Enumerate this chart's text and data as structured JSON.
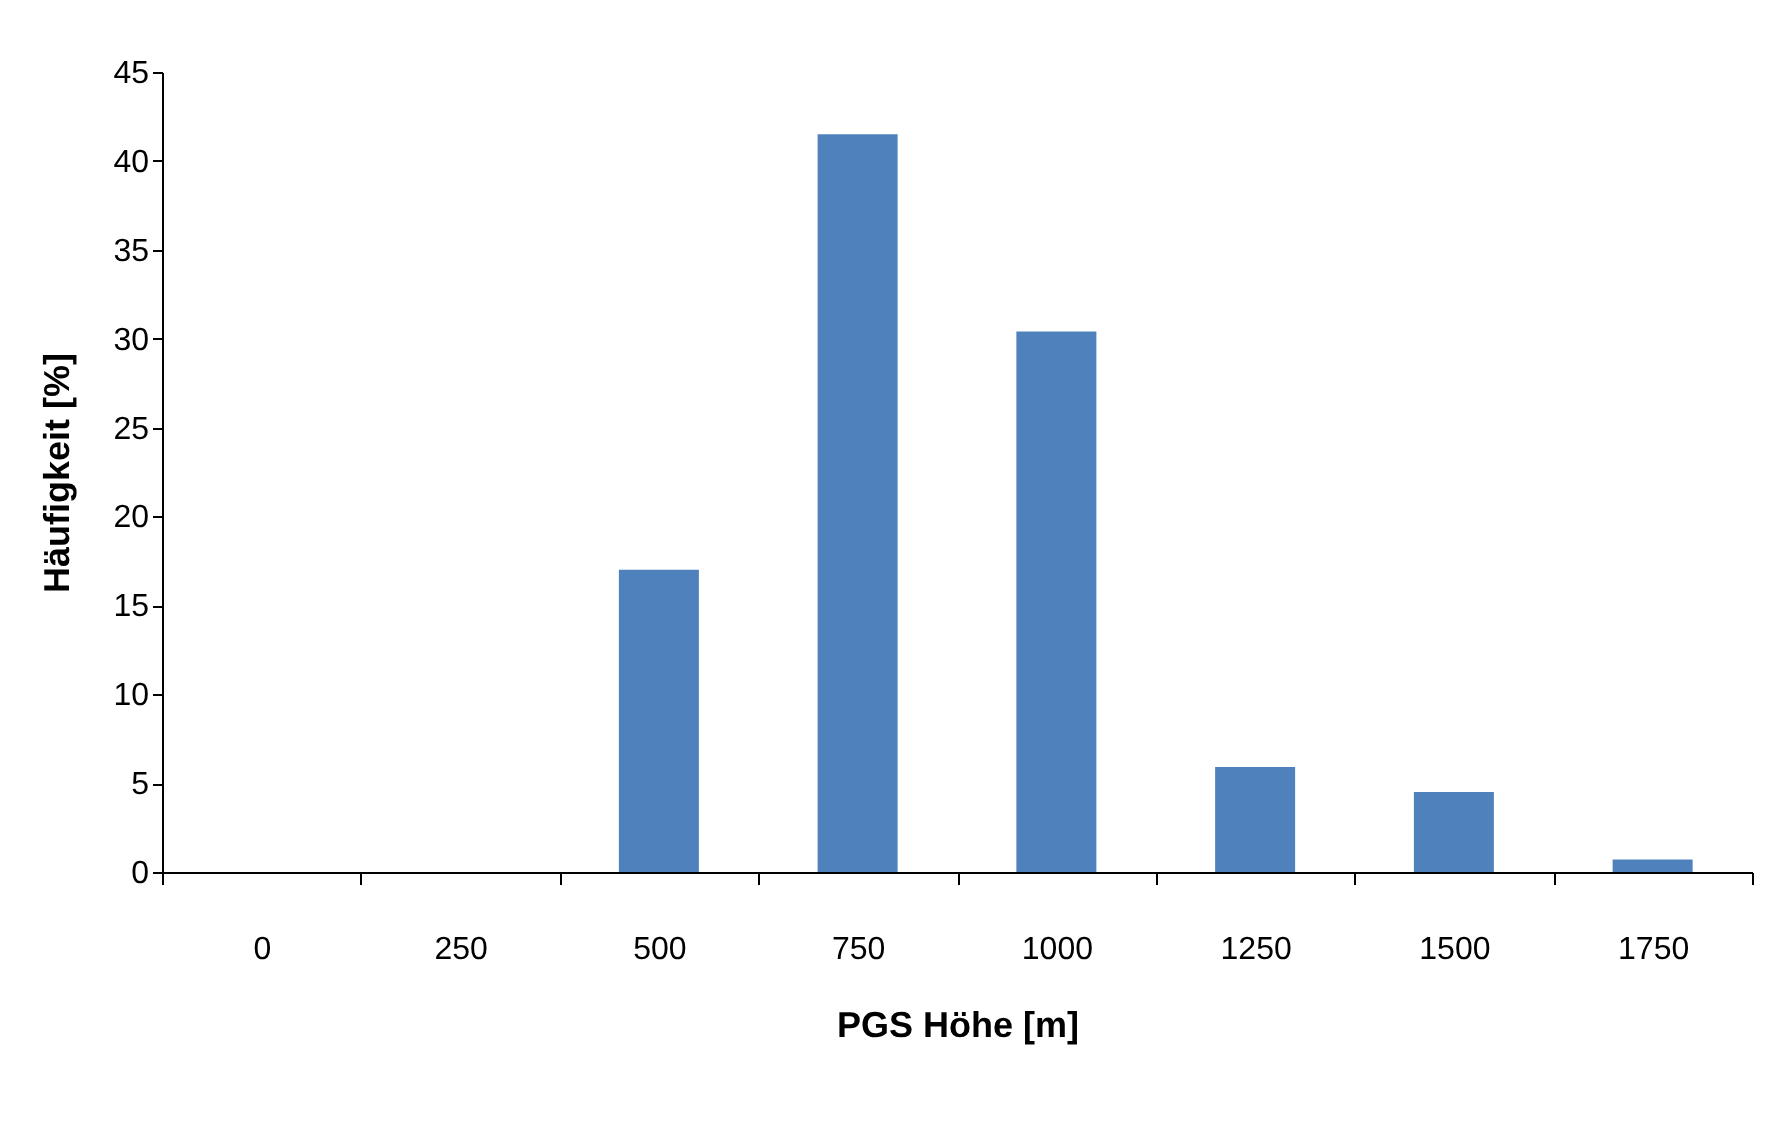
{
  "chart_data": {
    "type": "bar",
    "xlabel": "PGS Höhe [m]",
    "ylabel": "Häufigkeit [%]",
    "categories": [
      "0",
      "250",
      "500",
      "750",
      "1000",
      "1250",
      "1500",
      "1750"
    ],
    "values": [
      0,
      0,
      17.0,
      41.5,
      30.4,
      5.9,
      4.5,
      0.7
    ],
    "color": "#4f81bd",
    "ylim": [
      0,
      45
    ],
    "yticks": [
      0,
      5,
      10,
      15,
      20,
      25,
      30,
      35,
      40,
      45
    ],
    "grid": false
  }
}
